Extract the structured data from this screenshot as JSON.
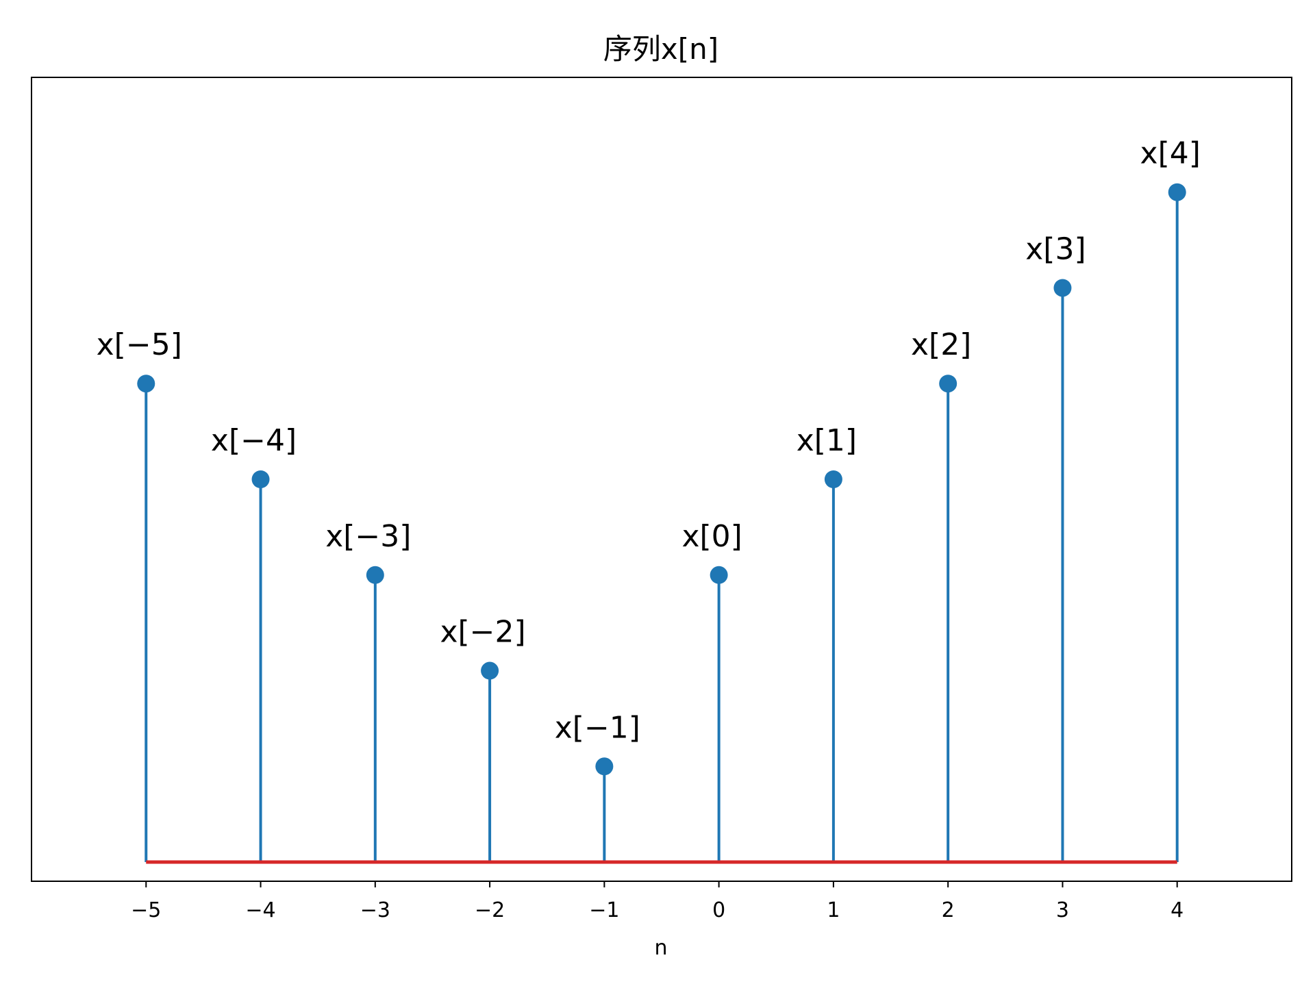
{
  "chart_data": {
    "type": "stem",
    "title": "序列x[n]",
    "xlabel": "n",
    "ylabel": "",
    "x": [
      -5,
      -4,
      -3,
      -2,
      -1,
      0,
      1,
      2,
      3,
      4
    ],
    "values": [
      5,
      4,
      3,
      2,
      1,
      3,
      4,
      5,
      6,
      7
    ],
    "point_labels": [
      "x[−5]",
      "x[−4]",
      "x[−3]",
      "x[−2]",
      "x[−1]",
      "x[0]",
      "x[1]",
      "x[2]",
      "x[3]",
      "x[4]"
    ],
    "x_ticks": [
      "−5",
      "−4",
      "−3",
      "−2",
      "−1",
      "0",
      "1",
      "2",
      "3",
      "4"
    ],
    "xlim": [
      -6,
      5
    ],
    "ylim": [
      -0.2,
      8.2
    ],
    "y_ticks_visible": false,
    "grid": false,
    "colors": {
      "stem": "#1f77b4",
      "marker": "#1f77b4",
      "baseline": "#d62728",
      "frame": "#000000"
    }
  }
}
